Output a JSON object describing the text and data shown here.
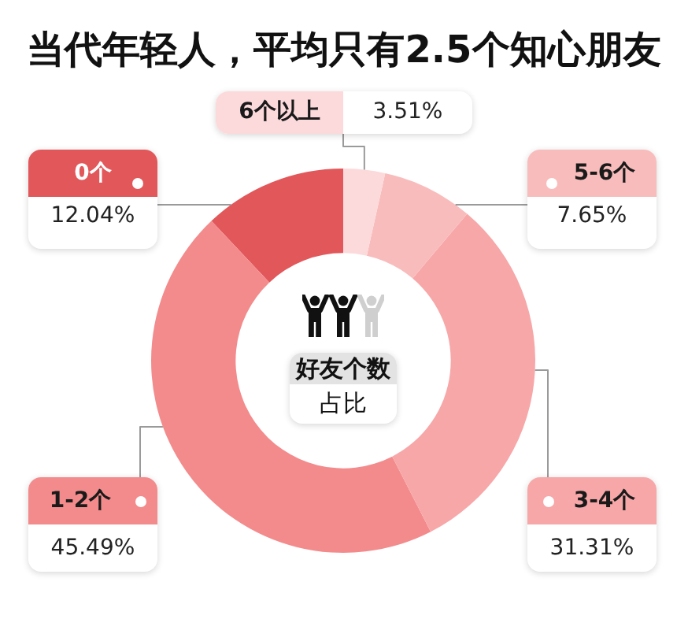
{
  "chart_data": {
    "type": "donut",
    "title": "当代年轻人，平均只有2.5个知心朋友",
    "categories": [
      "0个",
      "1-2个",
      "3-4个",
      "5-6个",
      "6个以上"
    ],
    "values": [
      12.04,
      45.49,
      31.31,
      7.65,
      3.51
    ],
    "colors": [
      "#e2575a",
      "#f38b8c",
      "#f7a7a8",
      "#f9bcbc",
      "#fcdadb"
    ],
    "value_labels": [
      "12.04%",
      "45.49%",
      "31.31%",
      "7.65%",
      "3.51%"
    ],
    "annotations": [
      "好友个数",
      "占比"
    ]
  }
}
